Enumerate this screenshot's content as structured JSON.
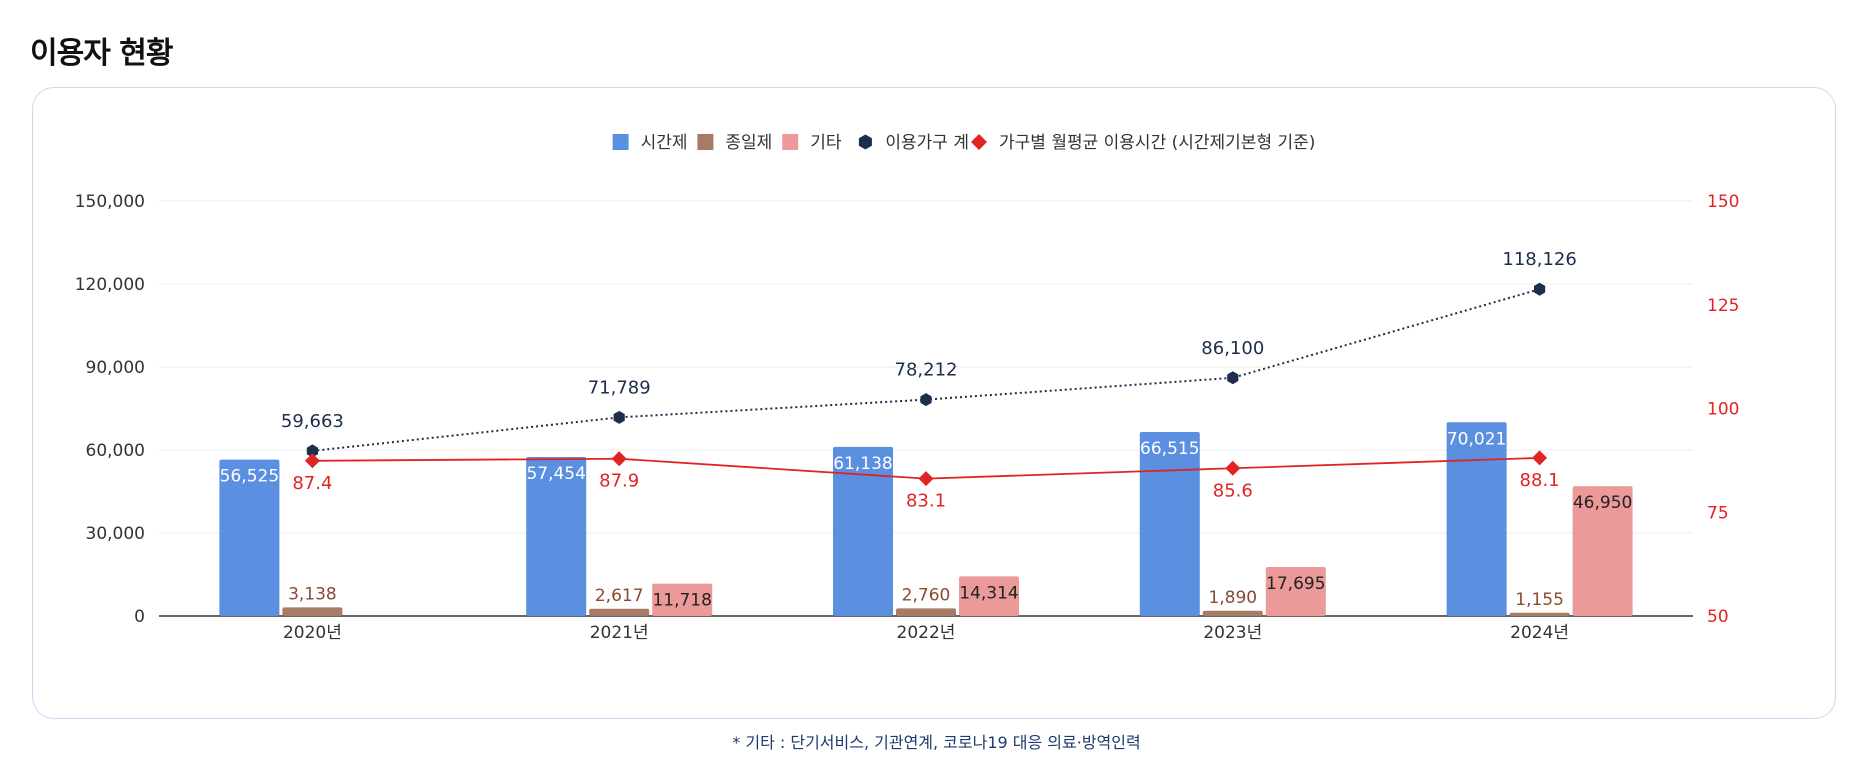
{
  "page": {
    "title": "이용자 현황",
    "footnote": "* 기타 : 단기서비스, 기관연계, 코로나19 대응 의료·방역인력"
  },
  "colors": {
    "part_time": "#5b8fe0",
    "full_time": "#a87b67",
    "other": "#ec9a99",
    "households": "#1d2e4c",
    "hours": "#e02424",
    "grid": "#eeeeee",
    "axis": "#333333"
  },
  "chart_data": {
    "type": "bar",
    "categories": [
      "2020년",
      "2021년",
      "2022년",
      "2023년",
      "2024년"
    ],
    "series": [
      {
        "name": "시간제",
        "kind": "bar",
        "axis": "left",
        "values": [
          56525,
          57454,
          61138,
          66515,
          70021
        ],
        "labels": [
          "56,525",
          "57,454",
          "61,138",
          "66,515",
          "70,021"
        ]
      },
      {
        "name": "종일제",
        "kind": "bar",
        "axis": "left",
        "values": [
          3138,
          2617,
          2760,
          1890,
          1155
        ],
        "labels": [
          "3,138",
          "2,617",
          "2,760",
          "1,890",
          "1,155"
        ]
      },
      {
        "name": "기타",
        "kind": "bar",
        "axis": "left",
        "values": [
          null,
          11718,
          14314,
          17695,
          46950
        ],
        "labels": [
          "",
          "11,718",
          "14,314",
          "17,695",
          "46,950"
        ]
      },
      {
        "name": "이용가구 계",
        "kind": "line",
        "line_style": "dotted",
        "marker": "hexagon",
        "axis": "left",
        "values": [
          59663,
          71789,
          78212,
          86100,
          118126
        ],
        "labels": [
          "59,663",
          "71,789",
          "78,212",
          "86,100",
          "118,126"
        ]
      },
      {
        "name": "가구별 월평균 이용시간 (시간제기본형 기준)",
        "kind": "line",
        "line_style": "solid",
        "marker": "diamond",
        "axis": "right",
        "values": [
          87.4,
          87.9,
          83.1,
          85.6,
          88.1
        ],
        "labels": [
          "87.4",
          "87.9",
          "83.1",
          "85.6",
          "88.1"
        ]
      }
    ],
    "y_left": {
      "min": 0,
      "max": 150000,
      "ticks": [
        0,
        30000,
        60000,
        90000,
        120000,
        150000
      ],
      "tick_labels": [
        "0",
        "30,000",
        "60,000",
        "90,000",
        "120,000",
        "150,000"
      ]
    },
    "y_right": {
      "min": 50,
      "max": 150,
      "ticks": [
        50,
        75,
        100,
        125,
        150
      ],
      "tick_labels": [
        "50",
        "75",
        "100",
        "125",
        "150"
      ]
    },
    "grid": true,
    "legend_position": "top-center"
  }
}
